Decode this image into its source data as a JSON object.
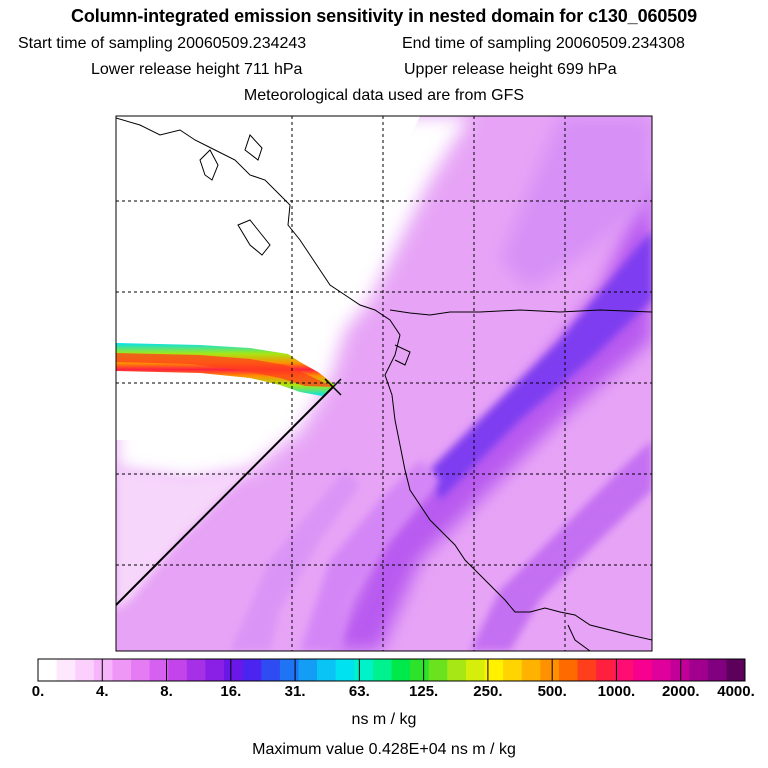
{
  "header": {
    "title": "Column-integrated emission sensitivity in nested domain for c130_060509",
    "start_time": "Start time of sampling 20060509.234243",
    "end_time": "End time of sampling 20060509.234308",
    "lower_release": "Lower release height  711 hPa",
    "upper_release": "Upper release height  699 hPa",
    "met_data": "Meteorological data used are from GFS"
  },
  "colorbar": {
    "labels": [
      "0.",
      "4.",
      "8.",
      "16.",
      "31.",
      "63.",
      "125.",
      "250.",
      "500.",
      "1000.",
      "2000.",
      "4000."
    ],
    "colors": [
      "#ffffff",
      "#fde8fe",
      "#fbd0fd",
      "#f6b4fb",
      "#ee97f7",
      "#e57cf4",
      "#d660f0",
      "#c444ec",
      "#a530e6",
      "#8a1fe6",
      "#6a17e8",
      "#4b24ef",
      "#2f4bf2",
      "#1f74f4",
      "#139df5",
      "#0bc4f6",
      "#00e2f0",
      "#00f2c9",
      "#00f28f",
      "#00e94a",
      "#2ce22b",
      "#6ae21d",
      "#a6e715",
      "#d6ef0a",
      "#fff100",
      "#ffd400",
      "#ffb300",
      "#ff9000",
      "#ff6a00",
      "#ff3f1c",
      "#ff2040",
      "#ff0d73",
      "#f70090",
      "#e0009b",
      "#c20099",
      "#a1008f",
      "#800080",
      "#5c005c"
    ],
    "unit": "ns m / kg",
    "max_value": "Maximum value  0.428E+04 ns m / kg"
  },
  "map": {
    "release_marker": "x",
    "background_color": "#e9a6f6",
    "low_color": "#ffffff",
    "high_color": "#8a3ae8"
  }
}
